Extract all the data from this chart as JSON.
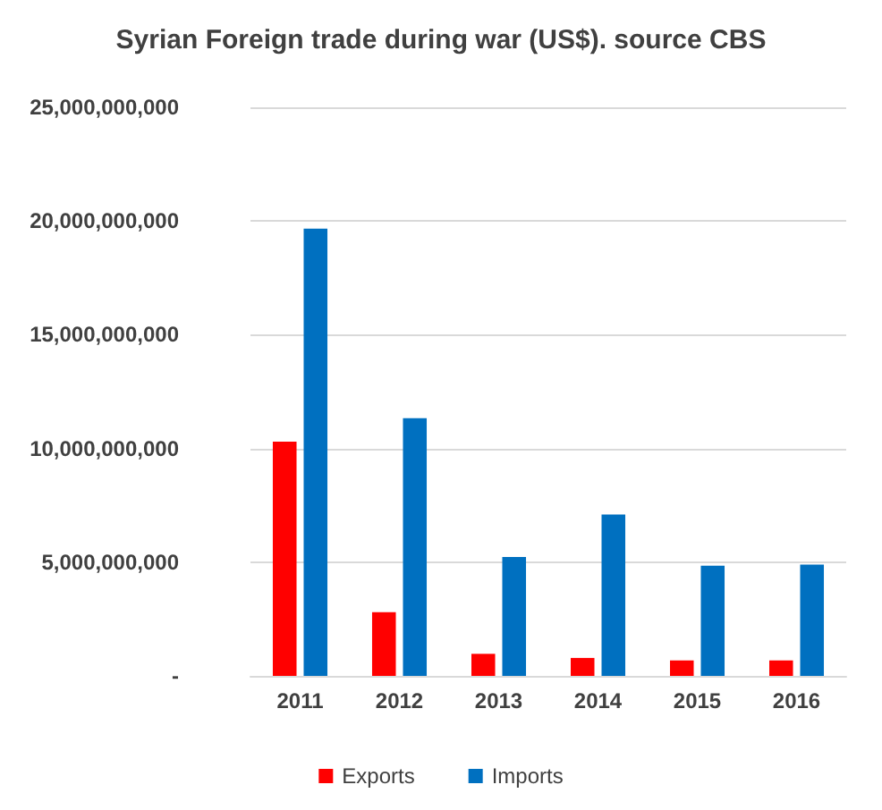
{
  "chart_data": {
    "type": "bar",
    "title": "Syrian Foreign trade during war (US$). source CBS",
    "categories": [
      "2011",
      "2012",
      "2013",
      "2014",
      "2015",
      "2016"
    ],
    "series": [
      {
        "name": "Exports",
        "color": "#ff0000",
        "values": [
          10300000000,
          2800000000,
          970000000,
          790000000,
          680000000,
          680000000
        ]
      },
      {
        "name": "Imports",
        "color": "#0070c0",
        "values": [
          19660000000,
          11330000000,
          5230000000,
          7100000000,
          4840000000,
          4890000000
        ]
      }
    ],
    "ylim": [
      0,
      25000000000
    ],
    "yticks": [
      {
        "value": 0,
        "label": "-"
      },
      {
        "value": 5000000000,
        "label": "5,000,000,000"
      },
      {
        "value": 10000000000,
        "label": "10,000,000,000"
      },
      {
        "value": 15000000000,
        "label": "15,000,000,000"
      },
      {
        "value": 20000000000,
        "label": "20,000,000,000"
      },
      {
        "value": 25000000000,
        "label": "25,000,000,000"
      }
    ],
    "grid": "y",
    "legend": "bottom"
  }
}
